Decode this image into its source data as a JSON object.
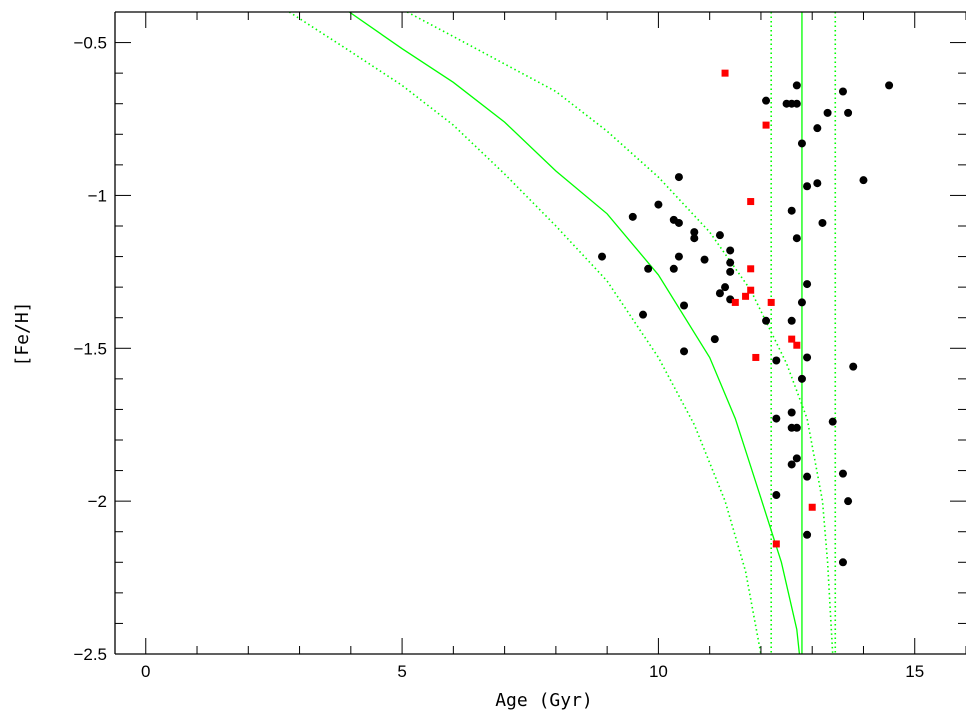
{
  "chart_data": {
    "type": "scatter",
    "xlabel": "Age (Gyr)",
    "ylabel": "[Fe/H]",
    "xlim": [
      -0.6,
      16
    ],
    "ylim": [
      -2.5,
      -0.4
    ],
    "x_ticks": [
      0,
      5,
      10,
      15
    ],
    "y_ticks": [
      -0.5,
      -1,
      -1.5,
      -2,
      -2.5
    ],
    "x_tick_labels": [
      "0",
      "5",
      "10",
      "15"
    ],
    "y_tick_labels": [
      "−0.5",
      "−1",
      "−1.5",
      "−2",
      "−2.5"
    ],
    "grid": false,
    "series": [
      {
        "marker": "circle",
        "color": "#000000",
        "points": [
          [
            8.9,
            -1.2
          ],
          [
            9.5,
            -1.07
          ],
          [
            9.7,
            -1.39
          ],
          [
            9.8,
            -1.24
          ],
          [
            10.0,
            -1.03
          ],
          [
            10.3,
            -1.08
          ],
          [
            10.3,
            -1.24
          ],
          [
            10.4,
            -1.09
          ],
          [
            10.4,
            -1.2
          ],
          [
            10.4,
            -0.94
          ],
          [
            10.5,
            -1.51
          ],
          [
            10.5,
            -1.36
          ],
          [
            10.7,
            -1.12
          ],
          [
            10.7,
            -1.14
          ],
          [
            10.9,
            -1.21
          ],
          [
            11.1,
            -1.47
          ],
          [
            11.2,
            -1.13
          ],
          [
            11.2,
            -1.32
          ],
          [
            11.3,
            -1.3
          ],
          [
            11.4,
            -1.18
          ],
          [
            11.4,
            -1.22
          ],
          [
            11.4,
            -1.25
          ],
          [
            11.4,
            -1.34
          ],
          [
            12.1,
            -0.69
          ],
          [
            12.1,
            -1.41
          ],
          [
            12.3,
            -1.54
          ],
          [
            12.3,
            -1.73
          ],
          [
            12.3,
            -1.98
          ],
          [
            12.5,
            -0.7
          ],
          [
            12.6,
            -0.7
          ],
          [
            12.6,
            -1.05
          ],
          [
            12.6,
            -1.41
          ],
          [
            12.6,
            -1.71
          ],
          [
            12.6,
            -1.76
          ],
          [
            12.6,
            -1.88
          ],
          [
            12.7,
            -0.64
          ],
          [
            12.7,
            -0.7
          ],
          [
            12.7,
            -1.14
          ],
          [
            12.7,
            -1.76
          ],
          [
            12.7,
            -1.86
          ],
          [
            12.8,
            -0.83
          ],
          [
            12.8,
            -1.35
          ],
          [
            12.8,
            -1.6
          ],
          [
            12.9,
            -0.97
          ],
          [
            12.9,
            -1.29
          ],
          [
            12.9,
            -1.53
          ],
          [
            12.9,
            -1.92
          ],
          [
            12.9,
            -2.11
          ],
          [
            13.1,
            -0.78
          ],
          [
            13.1,
            -0.96
          ],
          [
            13.2,
            -1.09
          ],
          [
            13.3,
            -0.73
          ],
          [
            13.4,
            -1.74
          ],
          [
            13.6,
            -0.66
          ],
          [
            13.6,
            -1.91
          ],
          [
            13.6,
            -2.2
          ],
          [
            13.7,
            -0.73
          ],
          [
            13.7,
            -2.0
          ],
          [
            13.8,
            -1.56
          ],
          [
            14.0,
            -0.95
          ],
          [
            14.5,
            -0.64
          ]
        ]
      },
      {
        "marker": "square",
        "color": "#ff0000",
        "points": [
          [
            11.3,
            -0.6
          ],
          [
            12.1,
            -0.77
          ],
          [
            11.8,
            -1.02
          ],
          [
            11.8,
            -1.24
          ],
          [
            11.8,
            -1.31
          ],
          [
            11.7,
            -1.33
          ],
          [
            11.5,
            -1.35
          ],
          [
            12.2,
            -1.35
          ],
          [
            11.9,
            -1.53
          ],
          [
            12.6,
            -1.47
          ],
          [
            12.7,
            -1.49
          ],
          [
            13.0,
            -2.02
          ],
          [
            12.3,
            -2.14
          ]
        ]
      }
    ],
    "lines": [
      {
        "kind": "curve",
        "style": "solid",
        "color": "#00ff00",
        "points": [
          [
            3.97,
            -0.4
          ],
          [
            5.0,
            -0.52
          ],
          [
            6.0,
            -0.63
          ],
          [
            7.0,
            -0.76
          ],
          [
            8.0,
            -0.92
          ],
          [
            9.0,
            -1.06
          ],
          [
            10.0,
            -1.26
          ],
          [
            11.0,
            -1.53
          ],
          [
            11.5,
            -1.73
          ],
          [
            12.0,
            -1.99
          ],
          [
            12.4,
            -2.2
          ],
          [
            12.7,
            -2.42
          ],
          [
            12.75,
            -2.5
          ]
        ]
      },
      {
        "kind": "curve",
        "style": "dotted",
        "color": "#00ff00",
        "points": [
          [
            2.8,
            -0.4
          ],
          [
            4.0,
            -0.53
          ],
          [
            5.0,
            -0.64
          ],
          [
            6.0,
            -0.77
          ],
          [
            7.0,
            -0.93
          ],
          [
            8.0,
            -1.1
          ],
          [
            9.0,
            -1.28
          ],
          [
            10.0,
            -1.53
          ],
          [
            10.7,
            -1.75
          ],
          [
            11.3,
            -2.0
          ],
          [
            11.7,
            -2.23
          ],
          [
            12.0,
            -2.5
          ]
        ]
      },
      {
        "kind": "curve",
        "style": "dotted",
        "color": "#00ff00",
        "points": [
          [
            5.1,
            -0.4
          ],
          [
            6.0,
            -0.48
          ],
          [
            7.0,
            -0.57
          ],
          [
            8.0,
            -0.66
          ],
          [
            9.0,
            -0.79
          ],
          [
            10.0,
            -0.94
          ],
          [
            11.0,
            -1.12
          ],
          [
            11.8,
            -1.31
          ],
          [
            12.5,
            -1.55
          ],
          [
            12.9,
            -1.73
          ],
          [
            13.2,
            -2.0
          ],
          [
            13.3,
            -2.2
          ],
          [
            13.4,
            -2.5
          ]
        ]
      },
      {
        "kind": "vertical",
        "style": "solid",
        "color": "#00ff00",
        "x": 12.8
      },
      {
        "kind": "vertical",
        "style": "dotted",
        "color": "#00ff00",
        "x": 12.2
      },
      {
        "kind": "vertical",
        "style": "dotted",
        "color": "#00ff00",
        "x": 13.45
      }
    ]
  }
}
